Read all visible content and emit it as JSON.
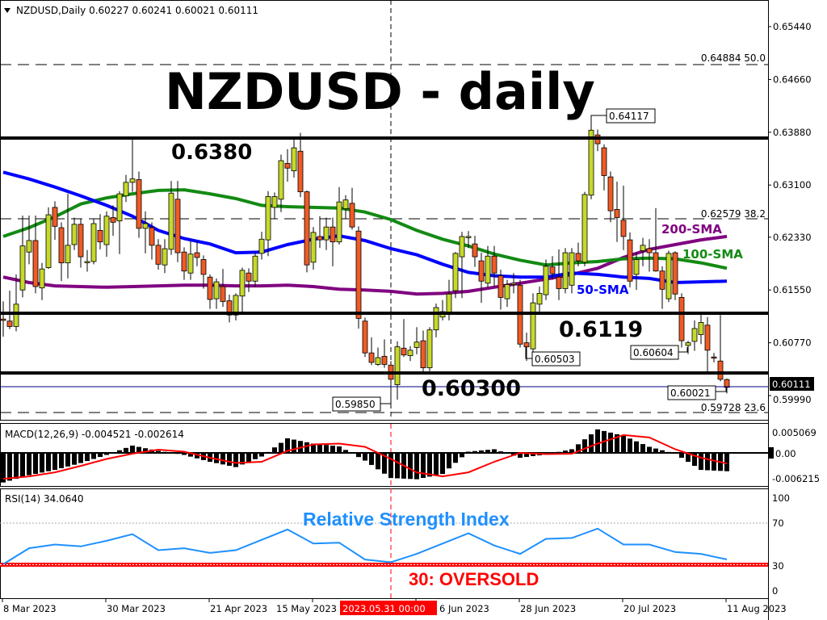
{
  "header": {
    "menu_icon": "triangle-down-icon",
    "title": "NZDUSD,Daily  0.60227 0.60241 0.60021 0.60111"
  },
  "annotations": {
    "main_title": "NZDUSD - daily",
    "level_high": "0.6380",
    "level_mid": "0.6119",
    "level_low": "0.60300",
    "sma200_label": "200-SMA",
    "sma100_label": "100-SMA",
    "sma50_label": "50-SMA",
    "price_tags": [
      "0.64117",
      "0.60503",
      "0.60604",
      "0.60021",
      "0.59850"
    ],
    "fib_50": "0.64884  50.0",
    "fib_382": "0.62579  38.2",
    "fib_236": "0.59728  23.6",
    "rsi_title": "Relative Strength Index",
    "rsi_oversold": "30: OVERSOLD"
  },
  "colors": {
    "bull": "#c6d92a",
    "bear": "#ef5b25",
    "sma50": "#0000ff",
    "sma100": "#138a13",
    "sma200": "#800080",
    "macd_signal": "#ff0000",
    "rsi_line": "#1e90ff",
    "oversold": "#ff0000",
    "current_price_line": "#00008b",
    "crosshair_label_bg": "#ff0000"
  },
  "price_axis": {
    "ticks": [
      "0.65440",
      "0.64660",
      "0.63880",
      "0.63100",
      "0.62330",
      "0.61550",
      "0.60770",
      "0.59990"
    ],
    "current_price": "0.60111"
  },
  "macd": {
    "label": "MACD(12,26,9) -0.004521 -0.002614",
    "ticks": [
      "0.005069",
      "0.00",
      "-0.006215"
    ]
  },
  "rsi": {
    "label": "RSI(14) 34.0640",
    "ticks": [
      "100",
      "70",
      "30",
      "0"
    ]
  },
  "time_axis": {
    "ticks": [
      "8 Mar 2023",
      "30 Mar 2023",
      "21 Apr 2023",
      "15 May 2023",
      "6 Jun 2023",
      "28 Jun 2023",
      "20 Jul 2023",
      "11 Aug 2023"
    ],
    "crosshair_label": "2023.05.31 00:00"
  },
  "chart_data": {
    "type": "candlestick",
    "symbol": "NZDUSD",
    "timeframe": "Daily",
    "x_range": [
      "8 Mar 2023",
      "11 Aug 2023"
    ],
    "ylim": [
      0.596,
      0.6575
    ],
    "horizontal_levels": [
      0.638,
      0.6119,
      0.603
    ],
    "fib_levels": [
      {
        "price": 0.64884,
        "pct": 50.0
      },
      {
        "price": 0.62579,
        "pct": 38.2
      },
      {
        "price": 0.59728,
        "pct": 23.6
      }
    ],
    "crosshair_date": "2023.05.31",
    "ohlc": [
      [
        0.6112,
        0.6138,
        0.6086,
        0.611
      ],
      [
        0.6109,
        0.6154,
        0.6097,
        0.6101
      ],
      [
        0.6101,
        0.6178,
        0.6094,
        0.6134
      ],
      [
        0.6155,
        0.6265,
        0.6144,
        0.622
      ],
      [
        0.6211,
        0.6265,
        0.6193,
        0.6228
      ],
      [
        0.6228,
        0.6265,
        0.615,
        0.616
      ],
      [
        0.6158,
        0.6195,
        0.614,
        0.6186
      ],
      [
        0.6188,
        0.6277,
        0.6186,
        0.6266
      ],
      [
        0.6277,
        0.6286,
        0.6229,
        0.6249
      ],
      [
        0.6247,
        0.6255,
        0.6168,
        0.6195
      ],
      [
        0.6195,
        0.6297,
        0.6172,
        0.6221
      ],
      [
        0.6222,
        0.6262,
        0.6214,
        0.6252
      ],
      [
        0.6252,
        0.626,
        0.6188,
        0.6204
      ],
      [
        0.6197,
        0.6214,
        0.6182,
        0.6197
      ],
      [
        0.6197,
        0.626,
        0.6193,
        0.6253
      ],
      [
        0.6243,
        0.6267,
        0.6215,
        0.6226
      ],
      [
        0.6222,
        0.6271,
        0.6204,
        0.6264
      ],
      [
        0.6262,
        0.628,
        0.6235,
        0.6255
      ],
      [
        0.6257,
        0.6301,
        0.6208,
        0.6297
      ],
      [
        0.6294,
        0.6325,
        0.6285,
        0.6314
      ],
      [
        0.6314,
        0.6377,
        0.63,
        0.6319
      ],
      [
        0.6318,
        0.633,
        0.6232,
        0.6246
      ],
      [
        0.6246,
        0.6271,
        0.6209,
        0.6253
      ],
      [
        0.6247,
        0.6255,
        0.62,
        0.6221
      ],
      [
        0.6221,
        0.623,
        0.6185,
        0.6193
      ],
      [
        0.6192,
        0.623,
        0.618,
        0.6216
      ],
      [
        0.6215,
        0.6316,
        0.6207,
        0.6298
      ],
      [
        0.6289,
        0.6316,
        0.6196,
        0.621
      ],
      [
        0.6211,
        0.6218,
        0.617,
        0.6183
      ],
      [
        0.618,
        0.6227,
        0.617,
        0.6208
      ],
      [
        0.621,
        0.6227,
        0.619,
        0.6203
      ],
      [
        0.62,
        0.6206,
        0.6157,
        0.6178
      ],
      [
        0.6174,
        0.6178,
        0.6127,
        0.6141
      ],
      [
        0.6142,
        0.6172,
        0.6127,
        0.6167
      ],
      [
        0.616,
        0.6186,
        0.613,
        0.6138
      ],
      [
        0.6139,
        0.6148,
        0.6107,
        0.6118
      ],
      [
        0.6118,
        0.615,
        0.611,
        0.6147
      ],
      [
        0.6146,
        0.6188,
        0.6123,
        0.6184
      ],
      [
        0.618,
        0.6187,
        0.6152,
        0.6168
      ],
      [
        0.6168,
        0.621,
        0.616,
        0.6205
      ],
      [
        0.6209,
        0.6241,
        0.62,
        0.623
      ],
      [
        0.6229,
        0.6301,
        0.6205,
        0.6293
      ],
      [
        0.6277,
        0.6299,
        0.626,
        0.6293
      ],
      [
        0.6289,
        0.6355,
        0.627,
        0.6346
      ],
      [
        0.6342,
        0.6363,
        0.6315,
        0.6335
      ],
      [
        0.6331,
        0.6377,
        0.6321,
        0.6365
      ],
      [
        0.636,
        0.6387,
        0.6292,
        0.63
      ],
      [
        0.63,
        0.6302,
        0.6181,
        0.6192
      ],
      [
        0.6196,
        0.6248,
        0.6185,
        0.624
      ],
      [
        0.6234,
        0.6264,
        0.6217,
        0.6229
      ],
      [
        0.6229,
        0.6262,
        0.6214,
        0.6248
      ],
      [
        0.6248,
        0.6262,
        0.619,
        0.6226
      ],
      [
        0.6226,
        0.6307,
        0.6222,
        0.6285
      ],
      [
        0.6275,
        0.6295,
        0.626,
        0.6288
      ],
      [
        0.6283,
        0.6306,
        0.6244,
        0.6248
      ],
      [
        0.6242,
        0.6249,
        0.6098,
        0.6113
      ],
      [
        0.6109,
        0.6114,
        0.6056,
        0.6062
      ],
      [
        0.6062,
        0.6085,
        0.6044,
        0.6048
      ],
      [
        0.6045,
        0.607,
        0.6043,
        0.6055
      ],
      [
        0.6057,
        0.6082,
        0.604,
        0.6045
      ],
      [
        0.6044,
        0.605,
        0.5985,
        0.6023
      ],
      [
        0.6015,
        0.6079,
        0.5993,
        0.6071
      ],
      [
        0.6069,
        0.6112,
        0.6056,
        0.6059
      ],
      [
        0.6058,
        0.6072,
        0.605,
        0.6066
      ],
      [
        0.607,
        0.61,
        0.606,
        0.6078
      ],
      [
        0.608,
        0.6095,
        0.603,
        0.604
      ],
      [
        0.604,
        0.61,
        0.6035,
        0.6096
      ],
      [
        0.6096,
        0.6135,
        0.6085,
        0.6129
      ],
      [
        0.6115,
        0.614,
        0.611,
        0.6123
      ],
      [
        0.6122,
        0.617,
        0.611,
        0.6149
      ],
      [
        0.6154,
        0.6211,
        0.6143,
        0.6209
      ],
      [
        0.6204,
        0.6241,
        0.6143,
        0.6234
      ],
      [
        0.6234,
        0.6242,
        0.6217,
        0.6234
      ],
      [
        0.6223,
        0.6235,
        0.6189,
        0.6204
      ],
      [
        0.6198,
        0.621,
        0.6136,
        0.6168
      ],
      [
        0.6165,
        0.622,
        0.6158,
        0.6205
      ],
      [
        0.6205,
        0.622,
        0.616,
        0.618
      ],
      [
        0.6176,
        0.6185,
        0.6126,
        0.6144
      ],
      [
        0.6142,
        0.617,
        0.613,
        0.6163
      ],
      [
        0.6163,
        0.618,
        0.615,
        0.6165
      ],
      [
        0.6162,
        0.617,
        0.607,
        0.6075
      ],
      [
        0.6077,
        0.6092,
        0.60503,
        0.6071
      ],
      [
        0.6068,
        0.615,
        0.6062,
        0.6136
      ],
      [
        0.6134,
        0.616,
        0.612,
        0.615
      ],
      [
        0.6148,
        0.62,
        0.614,
        0.619
      ],
      [
        0.6189,
        0.6205,
        0.617,
        0.6179
      ],
      [
        0.6174,
        0.6215,
        0.614,
        0.6157
      ],
      [
        0.6157,
        0.6217,
        0.615,
        0.621
      ],
      [
        0.6162,
        0.6217,
        0.615,
        0.621
      ],
      [
        0.6209,
        0.6225,
        0.619,
        0.6198
      ],
      [
        0.6196,
        0.63,
        0.619,
        0.6296
      ],
      [
        0.6295,
        0.64117,
        0.6289,
        0.6391
      ],
      [
        0.6384,
        0.6392,
        0.636,
        0.6371
      ],
      [
        0.6365,
        0.637,
        0.6302,
        0.6324
      ],
      [
        0.6322,
        0.633,
        0.6255,
        0.6272
      ],
      [
        0.6274,
        0.6315,
        0.6226,
        0.6262
      ],
      [
        0.6258,
        0.6309,
        0.6214,
        0.6234
      ],
      [
        0.6229,
        0.624,
        0.6159,
        0.6168
      ],
      [
        0.6178,
        0.621,
        0.6155,
        0.62
      ],
      [
        0.6213,
        0.6232,
        0.619,
        0.6221
      ],
      [
        0.6216,
        0.623,
        0.6182,
        0.621
      ],
      [
        0.621,
        0.6276,
        0.6182,
        0.6183
      ],
      [
        0.6183,
        0.619,
        0.6127,
        0.6156
      ],
      [
        0.6142,
        0.6213,
        0.6137,
        0.6209
      ],
      [
        0.621,
        0.6212,
        0.614,
        0.6149
      ],
      [
        0.6144,
        0.615,
        0.607,
        0.608
      ],
      [
        0.6073,
        0.608,
        0.60604,
        0.6077
      ],
      [
        0.6079,
        0.611,
        0.6065,
        0.6098
      ],
      [
        0.6089,
        0.612,
        0.6075,
        0.6107
      ],
      [
        0.6103,
        0.6115,
        0.6031,
        0.6066
      ],
      [
        0.6056,
        0.6062,
        0.6048,
        0.6055
      ],
      [
        0.605,
        0.6118,
        0.602,
        0.6023
      ],
      [
        0.60227,
        0.60241,
        0.60021,
        0.60111
      ]
    ],
    "sma50": [
      0.6329,
      0.6319,
      0.6307,
      0.6294,
      0.628,
      0.6264,
      0.6243,
      0.6231,
      0.6223,
      0.621,
      0.6211,
      0.6222,
      0.623,
      0.6235,
      0.6228,
      0.6216,
      0.6207,
      0.6193,
      0.6181,
      0.6176,
      0.6174,
      0.6174,
      0.618,
      0.6178,
      0.6174,
      0.6172,
      0.6166,
      0.6167,
      0.6168
    ],
    "sma100": [
      0.6234,
      0.6247,
      0.6263,
      0.6282,
      0.6291,
      0.6297,
      0.6302,
      0.6303,
      0.6297,
      0.629,
      0.628,
      0.6278,
      0.6277,
      0.6276,
      0.627,
      0.6259,
      0.6243,
      0.623,
      0.622,
      0.6208,
      0.6199,
      0.6192,
      0.6195,
      0.6197,
      0.6201,
      0.6202,
      0.6201,
      0.6195,
      0.6187
    ],
    "sma200": [
      0.6174,
      0.6166,
      0.6161,
      0.616,
      0.6159,
      0.616,
      0.6161,
      0.6162,
      0.6162,
      0.6161,
      0.6161,
      0.6162,
      0.616,
      0.6156,
      0.6155,
      0.6153,
      0.6149,
      0.615,
      0.6153,
      0.6159,
      0.6165,
      0.6171,
      0.6178,
      0.6187,
      0.6203,
      0.6215,
      0.6222,
      0.6229,
      0.6234
    ],
    "macd_histogram": [
      -0.0073,
      -0.0055,
      -0.0042,
      -0.0025,
      -0.0005,
      0.0018,
      0.0005,
      -0.0005,
      -0.0022,
      -0.0035,
      -0.0009,
      0.0036,
      0.0023,
      0.0016,
      -0.0019,
      -0.0062,
      -0.0065,
      -0.0052,
      0.0003,
      0.0009,
      -0.0012,
      -0.0004,
      0.0009,
      0.0058,
      0.0042,
      0.0015,
      -0.0002,
      -0.0042,
      -0.004521
    ],
    "macd_signal": [
      -0.0064,
      -0.0058,
      -0.0048,
      -0.0032,
      -0.0015,
      -0.0002,
      0.0008,
      0.0003,
      -0.0012,
      -0.0025,
      -0.0022,
      0.0005,
      0.0021,
      0.0023,
      0.0015,
      -0.0015,
      -0.0048,
      -0.0058,
      -0.0048,
      -0.0022,
      0.0,
      -0.0003,
      -0.0002,
      0.0023,
      0.0044,
      0.0038,
      0.0009,
      -0.0012,
      -0.002614
    ],
    "macd_ylim": [
      -0.0077,
      0.007
    ],
    "rsi_values": [
      29,
      46,
      50,
      48,
      54,
      61,
      44,
      46,
      41,
      44,
      55,
      66,
      51,
      52,
      34,
      31,
      40,
      51,
      62,
      49,
      40,
      56,
      57,
      67,
      50,
      50,
      42,
      40,
      34.064
    ],
    "rsi_levels": [
      70,
      30
    ],
    "rsi_ylim": [
      0,
      100
    ]
  }
}
